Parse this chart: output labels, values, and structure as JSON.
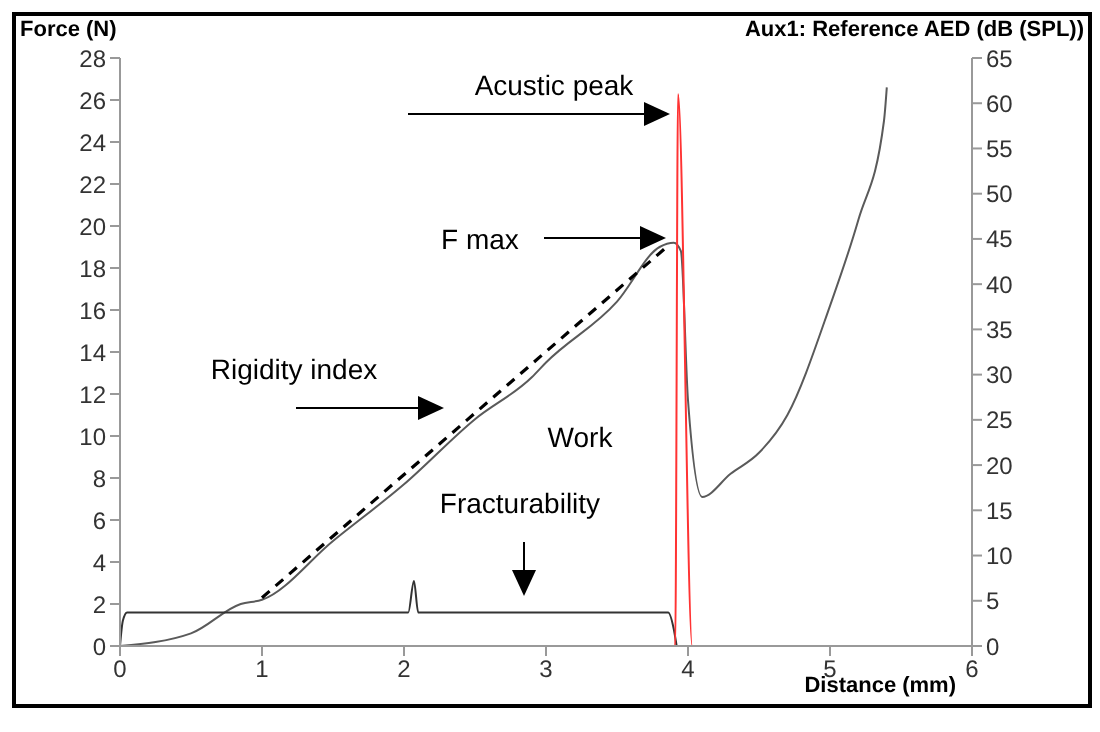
{
  "chart_data": {
    "type": "line",
    "xlabel": "Distance (mm)",
    "ylabel": "Force (N)",
    "y2label": "Aux1: Reference AED (dB (SPL))",
    "xlim": [
      0,
      6
    ],
    "xticks": [
      0,
      1,
      2,
      3,
      4,
      5,
      6
    ],
    "ylim": [
      0,
      28
    ],
    "yticks": [
      0,
      2,
      4,
      6,
      8,
      10,
      12,
      14,
      16,
      18,
      20,
      22,
      24,
      26,
      28
    ],
    "y2lim": [
      0,
      65
    ],
    "y2ticks": [
      0,
      5,
      10,
      15,
      20,
      25,
      30,
      35,
      40,
      45,
      50,
      55,
      60,
      65
    ],
    "marker": "none",
    "series": [
      {
        "color": "#5a5a5a",
        "line_style": "solid",
        "x": [
          0,
          0.5,
          0.85,
          1,
          1.5,
          2,
          2.5,
          2.9,
          3,
          3.5,
          3.8,
          3.9,
          3.95,
          4,
          4.1,
          4.3,
          4.5,
          4.7,
          5,
          5.2,
          5.38,
          5.4
        ],
        "values": [
          0,
          0.6,
          2,
          2.2,
          5,
          7.7,
          10.8,
          12.8,
          13.5,
          16.4,
          19,
          19.2,
          18.8,
          11.7,
          7.1,
          8.2,
          9.2,
          11,
          16.2,
          20.3,
          25,
          26.6
        ]
      },
      {
        "color": "#000000",
        "line_style": "dashed",
        "x": [
          1,
          3.85
        ],
        "values": [
          2.3,
          19
        ]
      },
      {
        "color": "#333333",
        "line_style": "solid",
        "x": [
          0,
          0.02,
          0.05,
          2.03,
          2.07,
          2.1,
          3.86,
          3.9,
          3.92
        ],
        "values": [
          0,
          1.2,
          1.6,
          1.6,
          3.1,
          1.6,
          1.6,
          0.8,
          0
        ]
      },
      {
        "color": "#ff3333",
        "line_style": "solid",
        "axis": "y2",
        "x": [
          0,
          3.91,
          3.93,
          4.03,
          5.4
        ],
        "values": [
          0,
          0,
          61,
          0,
          0
        ]
      }
    ],
    "annotations": [
      "Acustic peak",
      "F max",
      "Rigidity index",
      "Work",
      "Fracturability"
    ]
  }
}
